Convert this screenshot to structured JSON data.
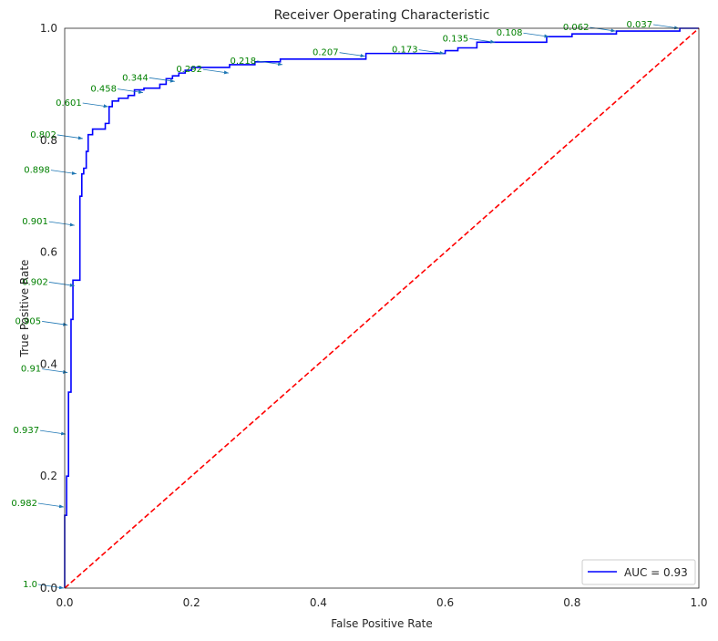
{
  "chart_data": {
    "type": "line",
    "title": "Receiver Operating Characteristic",
    "xlabel": "False Positive Rate",
    "ylabel": "True Positive Rate",
    "xlim": [
      0.0,
      1.0
    ],
    "ylim": [
      0.0,
      1.0
    ],
    "xticks": [
      0.0,
      0.2,
      0.4,
      0.6,
      0.8,
      1.0
    ],
    "yticks": [
      0.0,
      0.2,
      0.4,
      0.6,
      0.8,
      1.0
    ],
    "xtick_labels": [
      "0.0",
      "0.2",
      "0.4",
      "0.6",
      "0.8",
      "1.0"
    ],
    "ytick_labels": [
      "0.0",
      "0.2",
      "0.4",
      "0.6",
      "0.8",
      "1.0"
    ],
    "grid": false,
    "legend_position": "lower-right",
    "series": [
      {
        "name": "AUC = 0.93",
        "color": "#0000ff",
        "style": "solid",
        "x": [
          0.0,
          0.0,
          0.003,
          0.003,
          0.006,
          0.006,
          0.01,
          0.01,
          0.013,
          0.013,
          0.024,
          0.024,
          0.027,
          0.027,
          0.03,
          0.03,
          0.034,
          0.034,
          0.037,
          0.037,
          0.044,
          0.044,
          0.064,
          0.064,
          0.07,
          0.07,
          0.075,
          0.075,
          0.085,
          0.085,
          0.1,
          0.1,
          0.11,
          0.11,
          0.125,
          0.125,
          0.15,
          0.15,
          0.16,
          0.16,
          0.17,
          0.17,
          0.18,
          0.18,
          0.19,
          0.19,
          0.2,
          0.2,
          0.26,
          0.26,
          0.3,
          0.3,
          0.34,
          0.34,
          0.475,
          0.475,
          0.6,
          0.6,
          0.62,
          0.62,
          0.65,
          0.65,
          0.76,
          0.76,
          0.8,
          0.8,
          0.87,
          0.87,
          0.97,
          0.97,
          1.0
        ],
        "y": [
          0.0,
          0.13,
          0.13,
          0.2,
          0.2,
          0.35,
          0.35,
          0.48,
          0.48,
          0.55,
          0.55,
          0.7,
          0.7,
          0.74,
          0.74,
          0.75,
          0.75,
          0.78,
          0.78,
          0.81,
          0.81,
          0.82,
          0.82,
          0.83,
          0.83,
          0.86,
          0.86,
          0.87,
          0.87,
          0.875,
          0.875,
          0.88,
          0.88,
          0.89,
          0.89,
          0.893,
          0.893,
          0.9,
          0.9,
          0.91,
          0.91,
          0.915,
          0.915,
          0.92,
          0.92,
          0.925,
          0.925,
          0.93,
          0.93,
          0.935,
          0.935,
          0.94,
          0.94,
          0.945,
          0.945,
          0.955,
          0.955,
          0.96,
          0.96,
          0.965,
          0.965,
          0.975,
          0.975,
          0.985,
          0.985,
          0.99,
          0.99,
          0.995,
          0.995,
          1.0,
          1.0
        ]
      },
      {
        "color": "#ff0000",
        "style": "dashed",
        "x": [
          0.0,
          1.0
        ],
        "y": [
          0.0,
          1.0
        ]
      }
    ],
    "threshold_annotations": [
      {
        "label": "1.0",
        "x": 0.0,
        "y": 0.0
      },
      {
        "label": "0.982",
        "x": 0.0,
        "y": 0.145
      },
      {
        "label": "0.937",
        "x": 0.003,
        "y": 0.275
      },
      {
        "label": "0.91",
        "x": 0.006,
        "y": 0.385
      },
      {
        "label": "0.905",
        "x": 0.006,
        "y": 0.47
      },
      {
        "label": "0.902",
        "x": 0.017,
        "y": 0.54
      },
      {
        "label": "0.901",
        "x": 0.017,
        "y": 0.648
      },
      {
        "label": "0.898",
        "x": 0.02,
        "y": 0.74
      },
      {
        "label": "0.802",
        "x": 0.03,
        "y": 0.803
      },
      {
        "label": "0.601",
        "x": 0.07,
        "y": 0.86
      },
      {
        "label": "0.458",
        "x": 0.125,
        "y": 0.885
      },
      {
        "label": "0.344",
        "x": 0.175,
        "y": 0.905
      },
      {
        "label": "0.292",
        "x": 0.26,
        "y": 0.92
      },
      {
        "label": "0.218",
        "x": 0.345,
        "y": 0.935
      },
      {
        "label": "0.207",
        "x": 0.475,
        "y": 0.95
      },
      {
        "label": "0.173",
        "x": 0.6,
        "y": 0.955
      },
      {
        "label": "0.135",
        "x": 0.68,
        "y": 0.975
      },
      {
        "label": "0.108",
        "x": 0.765,
        "y": 0.985
      },
      {
        "label": "0.062",
        "x": 0.87,
        "y": 0.995
      },
      {
        "label": "0.037",
        "x": 0.97,
        "y": 1.0
      }
    ],
    "annotation_color": "#008000",
    "arrow_color": "#1f77b4"
  }
}
